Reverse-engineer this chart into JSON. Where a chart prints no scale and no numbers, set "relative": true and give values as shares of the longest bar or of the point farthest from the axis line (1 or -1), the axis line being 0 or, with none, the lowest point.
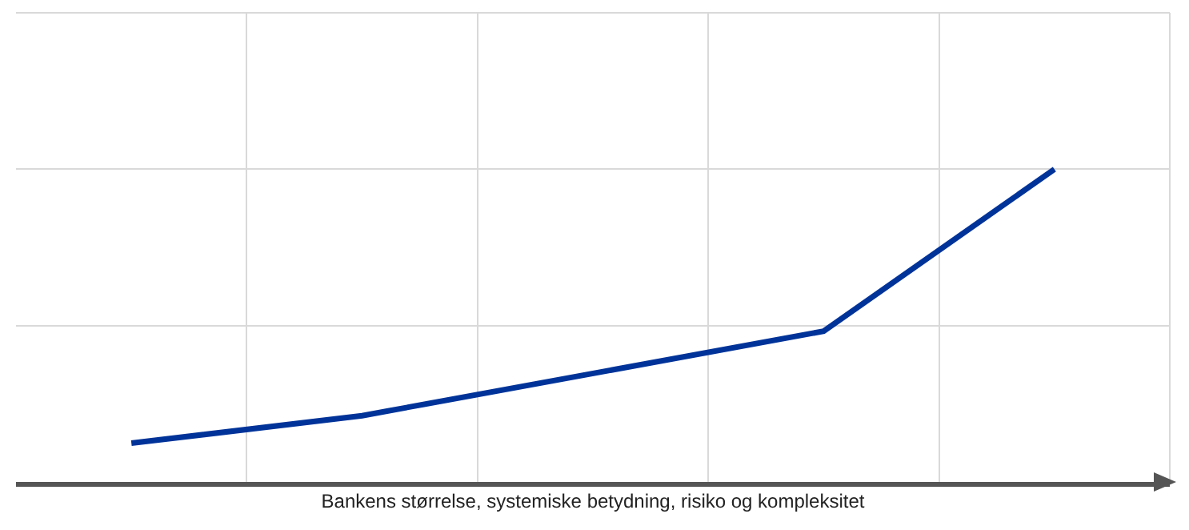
{
  "chart_data": {
    "type": "line",
    "relative": true,
    "xlabel": "Bankens størrelse, systemiske betydning, risiko og kompleksitet",
    "categories": [
      null,
      null,
      null,
      null,
      null
    ],
    "series": [
      {
        "color": "#003399",
        "values": [
          0.124,
          0.212,
          null,
          0.482,
          1
        ]
      }
    ],
    "grid": true,
    "marker": "none",
    "line_style": "solid"
  }
}
